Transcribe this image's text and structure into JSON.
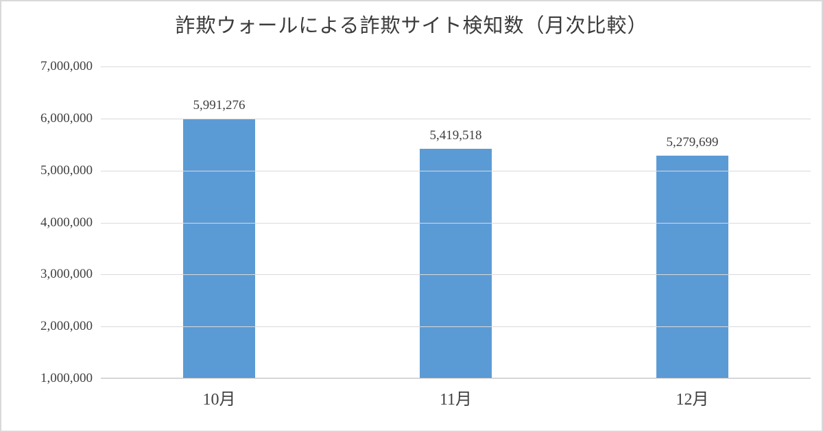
{
  "chart_data": {
    "type": "bar",
    "title": "詐欺ウォールによる詐欺サイト検知数（月次比較）",
    "categories": [
      "10月",
      "11月",
      "12月"
    ],
    "values": [
      5991276,
      5419518,
      5279699
    ],
    "data_labels": [
      "5,991,276",
      "5,419,518",
      "5,279,699"
    ],
    "y_ticks": [
      7000000,
      6000000,
      5000000,
      4000000,
      3000000,
      2000000,
      1000000
    ],
    "y_tick_labels": [
      "7,000,000",
      "6,000,000",
      "5,000,000",
      "4,000,000",
      "3,000,000",
      "2,000,000",
      "1,000,000"
    ],
    "ylim": [
      1000000,
      7000000
    ],
    "xlabel": "",
    "ylabel": "",
    "grid": true,
    "legend": false,
    "bar_color": "#5b9bd5",
    "grid_color": "#d9d9d9",
    "axis_line_color": "#b3b3b3",
    "text_color": "#404040",
    "title_color": "#3b3b3b"
  }
}
